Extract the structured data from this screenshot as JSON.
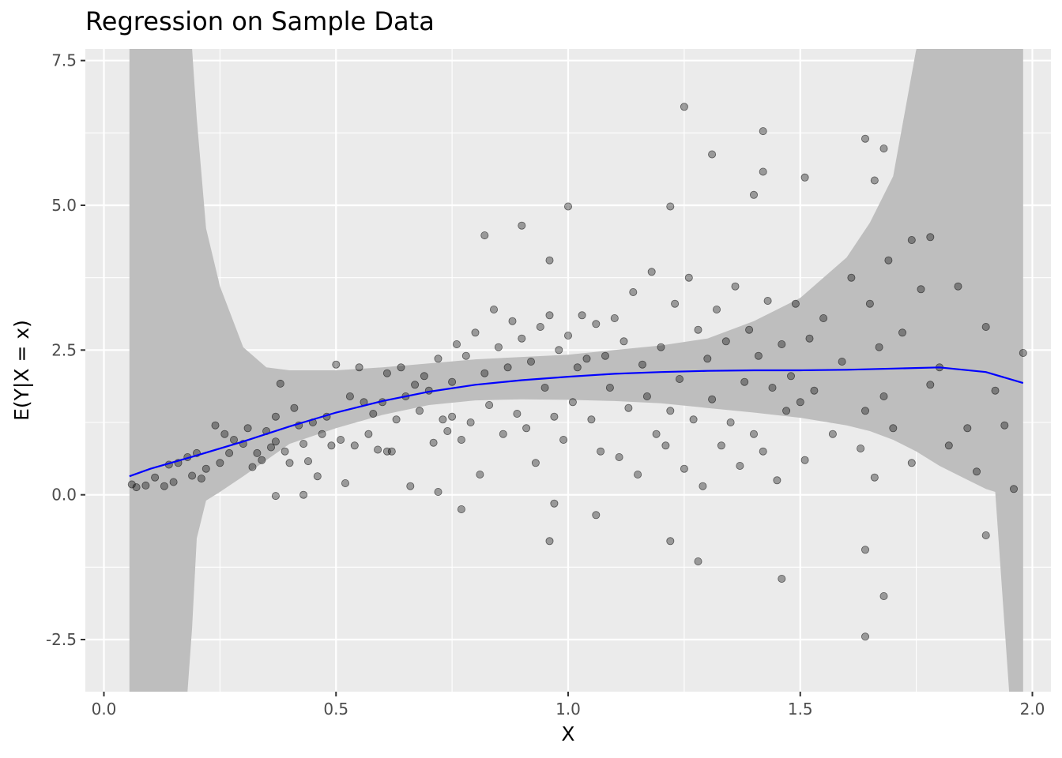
{
  "chart_data": {
    "type": "scatter",
    "title": "Regression on Sample Data",
    "xlabel": "X",
    "ylabel": "E(Y|X = x)",
    "xlim": [
      -0.04,
      2.04
    ],
    "ylim": [
      -3.4,
      7.7
    ],
    "x_ticks": [
      0.0,
      0.5,
      1.0,
      1.5,
      2.0
    ],
    "x_tick_labels": [
      "0.0",
      "0.5",
      "1.0",
      "1.5",
      "2.0"
    ],
    "y_ticks": [
      -2.5,
      0.0,
      2.5,
      5.0,
      7.5
    ],
    "y_tick_labels": [
      "-2.5",
      "0.0",
      "2.5",
      "5.0",
      "7.5"
    ],
    "grid": true,
    "colors": {
      "panel": "#ebebeb",
      "grid_major": "#ffffff",
      "points": "#000000",
      "fit_line": "#0000ff",
      "ribbon": "#bebebe"
    },
    "fit_line": {
      "x": [
        0.055,
        0.1,
        0.2,
        0.3,
        0.4,
        0.5,
        0.6,
        0.7,
        0.8,
        0.9,
        1.0,
        1.1,
        1.2,
        1.3,
        1.4,
        1.5,
        1.6,
        1.7,
        1.8,
        1.9,
        1.98
      ],
      "y": [
        0.32,
        0.45,
        0.68,
        0.92,
        1.18,
        1.42,
        1.62,
        1.78,
        1.9,
        1.98,
        2.04,
        2.09,
        2.12,
        2.14,
        2.15,
        2.15,
        2.16,
        2.18,
        2.2,
        2.12,
        1.93
      ]
    },
    "confidence_band": {
      "x": [
        0.055,
        0.15,
        0.18,
        0.19,
        0.2,
        0.22,
        0.25,
        0.3,
        0.35,
        0.4,
        0.5,
        0.6,
        0.7,
        0.8,
        0.9,
        1.0,
        1.1,
        1.2,
        1.3,
        1.4,
        1.5,
        1.6,
        1.65,
        1.7,
        1.75,
        1.8,
        1.85,
        1.9,
        1.92,
        1.95,
        1.98
      ],
      "upper": [
        7.7,
        7.7,
        7.7,
        7.7,
        6.5,
        4.6,
        3.6,
        2.55,
        2.2,
        2.15,
        2.15,
        2.2,
        2.27,
        2.34,
        2.38,
        2.42,
        2.5,
        2.58,
        2.7,
        3.0,
        3.4,
        4.1,
        4.7,
        5.5,
        7.7,
        7.7,
        7.7,
        7.7,
        7.7,
        7.7,
        7.7
      ],
      "lower": [
        -3.4,
        -3.4,
        -3.4,
        -2.3,
        -0.75,
        -0.1,
        0.05,
        0.32,
        0.6,
        0.88,
        1.15,
        1.38,
        1.55,
        1.63,
        1.65,
        1.64,
        1.62,
        1.58,
        1.5,
        1.42,
        1.33,
        1.2,
        1.1,
        0.95,
        0.75,
        0.5,
        0.3,
        0.1,
        0.05,
        -3.4,
        -3.4
      ]
    },
    "points": {
      "x": [
        0.06,
        0.07,
        0.09,
        0.11,
        0.13,
        0.14,
        0.15,
        0.16,
        0.18,
        0.19,
        0.2,
        0.21,
        0.22,
        0.24,
        0.25,
        0.26,
        0.27,
        0.28,
        0.3,
        0.31,
        0.32,
        0.33,
        0.34,
        0.35,
        0.36,
        0.37,
        0.37,
        0.38,
        0.39,
        0.4,
        0.41,
        0.42,
        0.43,
        0.44,
        0.45,
        0.46,
        0.47,
        0.48,
        0.49,
        0.5,
        0.51,
        0.52,
        0.53,
        0.54,
        0.55,
        0.56,
        0.57,
        0.58,
        0.59,
        0.6,
        0.61,
        0.62,
        0.63,
        0.64,
        0.65,
        0.66,
        0.67,
        0.68,
        0.69,
        0.7,
        0.71,
        0.72,
        0.73,
        0.74,
        0.75,
        0.76,
        0.77,
        0.78,
        0.79,
        0.8,
        0.81,
        0.82,
        0.83,
        0.84,
        0.85,
        0.86,
        0.87,
        0.88,
        0.89,
        0.9,
        0.91,
        0.92,
        0.93,
        0.94,
        0.95,
        0.96,
        0.97,
        0.98,
        0.99,
        1.0,
        1.01,
        1.02,
        1.03,
        1.04,
        1.05,
        1.06,
        1.07,
        1.08,
        1.09,
        1.1,
        1.11,
        1.12,
        1.13,
        1.14,
        1.15,
        1.16,
        1.17,
        1.18,
        1.19,
        1.2,
        1.21,
        1.22,
        1.23,
        1.24,
        1.25,
        1.26,
        1.27,
        1.28,
        1.29,
        1.3,
        1.31,
        1.32,
        1.33,
        1.34,
        1.35,
        1.36,
        1.37,
        1.38,
        1.39,
        1.4,
        1.41,
        1.42,
        1.43,
        1.44,
        1.45,
        1.46,
        1.47,
        1.48,
        1.49,
        1.5,
        1.51,
        1.52,
        1.53,
        1.55,
        1.57,
        1.59,
        1.61,
        1.63,
        1.64,
        1.65,
        1.66,
        1.67,
        1.68,
        1.69,
        1.7,
        1.72,
        1.74,
        1.76,
        1.78,
        1.8,
        1.82,
        1.84,
        1.86,
        1.88,
        1.9,
        1.92,
        1.94,
        1.96,
        1.98,
        1.25,
        1.42,
        1.64,
        1.68,
        1.31,
        1.42,
        1.51,
        1.0,
        0.82,
        0.9,
        1.22,
        1.4,
        1.74,
        1.78,
        1.66,
        1.64,
        1.28,
        1.46,
        1.64,
        1.68,
        1.9,
        1.22,
        0.96,
        1.06,
        0.43,
        0.37,
        0.72,
        0.77,
        0.61,
        0.75,
        0.96,
        0.97
      ],
      "y": [
        0.18,
        0.13,
        0.16,
        0.3,
        0.15,
        0.52,
        0.22,
        0.55,
        0.65,
        0.33,
        0.72,
        0.28,
        0.45,
        1.2,
        0.55,
        1.05,
        0.72,
        0.95,
        0.88,
        1.15,
        0.48,
        0.72,
        0.6,
        1.1,
        0.82,
        1.35,
        0.92,
        1.92,
        0.75,
        0.55,
        1.5,
        1.2,
        0.88,
        0.58,
        1.25,
        0.32,
        1.05,
        1.35,
        0.85,
        2.25,
        0.95,
        0.2,
        1.7,
        0.85,
        2.2,
        1.6,
        1.05,
        1.4,
        0.78,
        1.6,
        2.1,
        0.75,
        1.3,
        2.2,
        1.7,
        0.15,
        1.9,
        1.45,
        2.05,
        1.8,
        0.9,
        2.35,
        1.3,
        1.1,
        1.95,
        2.6,
        0.95,
        2.4,
        1.25,
        2.8,
        0.35,
        2.1,
        1.55,
        3.2,
        2.55,
        1.05,
        2.2,
        3.0,
        1.4,
        2.7,
        1.15,
        2.3,
        0.55,
        2.9,
        1.85,
        3.1,
        1.35,
        2.5,
        0.95,
        2.75,
        1.6,
        2.2,
        3.1,
        2.35,
        1.3,
        2.95,
        0.75,
        2.4,
        1.85,
        3.05,
        0.65,
        2.65,
        1.5,
        3.5,
        0.35,
        2.25,
        1.7,
        3.85,
        1.05,
        2.55,
        0.85,
        1.45,
        3.3,
        2.0,
        0.45,
        3.75,
        1.3,
        2.85,
        0.15,
        2.35,
        1.65,
        3.2,
        0.85,
        2.65,
        1.25,
        3.6,
        0.5,
        1.95,
        2.85,
        1.05,
        2.4,
        0.75,
        3.35,
        1.85,
        0.25,
        2.6,
        1.45,
        2.05,
        3.3,
        1.6,
        0.6,
        2.7,
        1.8,
        3.05,
        1.05,
        2.3,
        3.75,
        0.8,
        1.45,
        3.3,
        0.3,
        2.55,
        1.7,
        4.05,
        1.15,
        2.8,
        0.55,
        3.55,
        1.9,
        2.2,
        0.85,
        3.6,
        1.15,
        0.4,
        2.9,
        1.8,
        1.2,
        0.1,
        2.45,
        6.7,
        6.28,
        6.15,
        5.98,
        5.88,
        5.58,
        5.48,
        4.98,
        4.48,
        4.65,
        4.98,
        5.18,
        4.4,
        4.45,
        5.43,
        -0.95,
        -1.15,
        -1.45,
        -2.45,
        -1.75,
        -0.7,
        -0.8,
        -0.8,
        -0.35,
        0.0,
        -0.02,
        0.05,
        -0.25,
        0.75,
        1.35,
        4.05,
        -0.15
      ]
    }
  }
}
